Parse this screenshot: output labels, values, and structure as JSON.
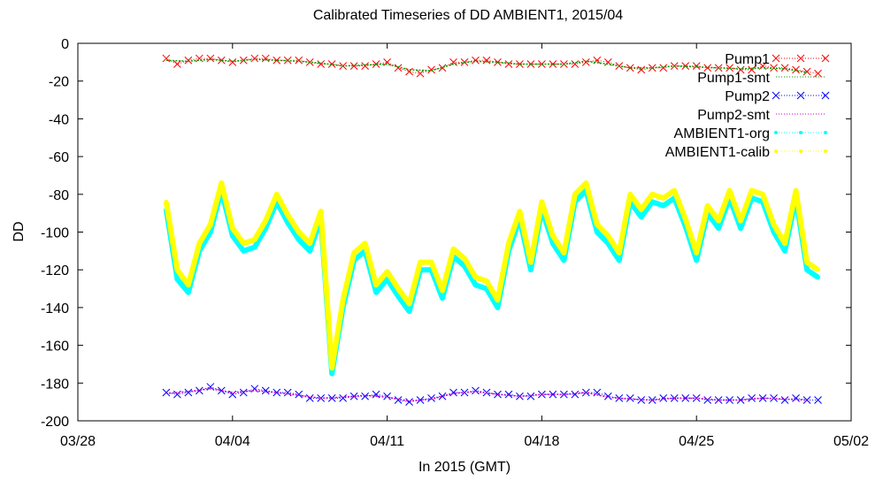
{
  "chart_data": {
    "type": "line",
    "title": "Calibrated Timeseries of DD AMBIENT1, 2015/04",
    "xlabel": "In 2015 (GMT)",
    "ylabel": "DD",
    "xlim": [
      "2015-03-28",
      "2015-05-02"
    ],
    "ylim": [
      -200,
      0
    ],
    "x_ticks": [
      "03/28",
      "04/04",
      "04/11",
      "04/18",
      "04/25",
      "05/02"
    ],
    "y_ticks": [
      "0",
      "-20",
      "-40",
      "-60",
      "-80",
      "-100",
      "-120",
      "-140",
      "-160",
      "-180",
      "-200"
    ],
    "legend_position": "top-right",
    "series": [
      {
        "name": "Pump1",
        "color": "#ff0000",
        "style": "points-x",
        "x": [
          "2015-04-01",
          "2015-04-01.5",
          "2015-04-02",
          "2015-04-02.5",
          "2015-04-03",
          "2015-04-03.5",
          "2015-04-04",
          "2015-04-04.5",
          "2015-04-05",
          "2015-04-05.5",
          "2015-04-06",
          "2015-04-06.5",
          "2015-04-07",
          "2015-04-07.5",
          "2015-04-08",
          "2015-04-08.5",
          "2015-04-09",
          "2015-04-09.5",
          "2015-04-10",
          "2015-04-10.5",
          "2015-04-11",
          "2015-04-11.5",
          "2015-04-12",
          "2015-04-12.5",
          "2015-04-13",
          "2015-04-13.5",
          "2015-04-14",
          "2015-04-14.5",
          "2015-04-15",
          "2015-04-15.5",
          "2015-04-16",
          "2015-04-16.5",
          "2015-04-17",
          "2015-04-17.5",
          "2015-04-18",
          "2015-04-18.5",
          "2015-04-19",
          "2015-04-19.5",
          "2015-04-20",
          "2015-04-20.5",
          "2015-04-21",
          "2015-04-21.5",
          "2015-04-22",
          "2015-04-22.5",
          "2015-04-23",
          "2015-04-23.5",
          "2015-04-24",
          "2015-04-24.5",
          "2015-04-25",
          "2015-04-25.5",
          "2015-04-26",
          "2015-04-26.5",
          "2015-04-27",
          "2015-04-27.5",
          "2015-04-28",
          "2015-04-28.5",
          "2015-04-29",
          "2015-04-29.5",
          "2015-04-30",
          "2015-04-30.5"
        ],
        "y": [
          -8,
          -11,
          -9,
          -8,
          -8,
          -9,
          -10,
          -9,
          -8,
          -8,
          -9,
          -9,
          -9,
          -10,
          -11,
          -11,
          -12,
          -12,
          -12,
          -11,
          -10,
          -13,
          -15,
          -16,
          -14,
          -13,
          -10,
          -10,
          -9,
          -9,
          -10,
          -11,
          -11,
          -11,
          -11,
          -11,
          -11,
          -11,
          -10,
          -9,
          -10,
          -12,
          -13,
          -14,
          -13,
          -13,
          -12,
          -12,
          -12,
          -13,
          -13,
          -13,
          -14,
          -14,
          -12,
          -13,
          -13,
          -14,
          -15,
          -16
        ]
      },
      {
        "name": "Pump1-smt",
        "color": "#00a000",
        "style": "dotted-line",
        "x": [
          "2015-04-01",
          "2015-04-02",
          "2015-04-03",
          "2015-04-04",
          "2015-04-05",
          "2015-04-06",
          "2015-04-07",
          "2015-04-08",
          "2015-04-09",
          "2015-04-10",
          "2015-04-11",
          "2015-04-12",
          "2015-04-13",
          "2015-04-14",
          "2015-04-15",
          "2015-04-16",
          "2015-04-17",
          "2015-04-18",
          "2015-04-19",
          "2015-04-20",
          "2015-04-21",
          "2015-04-22",
          "2015-04-23",
          "2015-04-24",
          "2015-04-25",
          "2015-04-26",
          "2015-04-27",
          "2015-04-28",
          "2015-04-29",
          "2015-04-30"
        ],
        "y": [
          -9,
          -9.5,
          -8.5,
          -9.5,
          -8.5,
          -9,
          -9.5,
          -10.5,
          -12,
          -11.5,
          -11,
          -14,
          -14.5,
          -11,
          -9.5,
          -10,
          -11,
          -11,
          -11,
          -9.5,
          -11,
          -13,
          -13,
          -12,
          -12.5,
          -13,
          -13.5,
          -13,
          -13.5,
          -15.5
        ]
      },
      {
        "name": "Pump2",
        "color": "#0000ff",
        "style": "points-x",
        "x": [
          "2015-04-01",
          "2015-04-01.5",
          "2015-04-02",
          "2015-04-02.5",
          "2015-04-03",
          "2015-04-03.5",
          "2015-04-04",
          "2015-04-04.5",
          "2015-04-05",
          "2015-04-05.5",
          "2015-04-06",
          "2015-04-06.5",
          "2015-04-07",
          "2015-04-07.5",
          "2015-04-08",
          "2015-04-08.5",
          "2015-04-09",
          "2015-04-09.5",
          "2015-04-10",
          "2015-04-10.5",
          "2015-04-11",
          "2015-04-11.5",
          "2015-04-12",
          "2015-04-12.5",
          "2015-04-13",
          "2015-04-13.5",
          "2015-04-14",
          "2015-04-14.5",
          "2015-04-15",
          "2015-04-15.5",
          "2015-04-16",
          "2015-04-16.5",
          "2015-04-17",
          "2015-04-17.5",
          "2015-04-18",
          "2015-04-18.5",
          "2015-04-19",
          "2015-04-19.5",
          "2015-04-20",
          "2015-04-20.5",
          "2015-04-21",
          "2015-04-21.5",
          "2015-04-22",
          "2015-04-22.5",
          "2015-04-23",
          "2015-04-23.5",
          "2015-04-24",
          "2015-04-24.5",
          "2015-04-25",
          "2015-04-25.5",
          "2015-04-26",
          "2015-04-26.5",
          "2015-04-27",
          "2015-04-27.5",
          "2015-04-28",
          "2015-04-28.5",
          "2015-04-29",
          "2015-04-29.5",
          "2015-04-30",
          "2015-04-30.5"
        ],
        "y": [
          -185,
          -186,
          -185,
          -184,
          -182,
          -184,
          -186,
          -185,
          -183,
          -184,
          -185,
          -185,
          -186,
          -188,
          -188,
          -188,
          -188,
          -187,
          -187,
          -186,
          -187,
          -189,
          -190,
          -189,
          -188,
          -187,
          -185,
          -185,
          -184,
          -185,
          -186,
          -186,
          -187,
          -187,
          -186,
          -186,
          -186,
          -186,
          -185,
          -185,
          -187,
          -188,
          -188,
          -189,
          -189,
          -188,
          -188,
          -188,
          -188,
          -189,
          -189,
          -189,
          -189,
          -188,
          -188,
          -188,
          -189,
          -188,
          -189,
          -189
        ]
      },
      {
        "name": "Pump2-smt",
        "color": "#cc00cc",
        "style": "dotted-line",
        "x": [
          "2015-04-01",
          "2015-04-02",
          "2015-04-03",
          "2015-04-04",
          "2015-04-05",
          "2015-04-06",
          "2015-04-07",
          "2015-04-08",
          "2015-04-09",
          "2015-04-10",
          "2015-04-11",
          "2015-04-12",
          "2015-04-13",
          "2015-04-14",
          "2015-04-15",
          "2015-04-16",
          "2015-04-17",
          "2015-04-18",
          "2015-04-19",
          "2015-04-20",
          "2015-04-21",
          "2015-04-22",
          "2015-04-23",
          "2015-04-24",
          "2015-04-25",
          "2015-04-26",
          "2015-04-27",
          "2015-04-28",
          "2015-04-29",
          "2015-04-30"
        ],
        "y": [
          -185.5,
          -184.5,
          -183,
          -185,
          -184,
          -185,
          -186.5,
          -188,
          -187.5,
          -186.5,
          -187.5,
          -189.5,
          -188.5,
          -185.5,
          -184.5,
          -186,
          -187,
          -186,
          -186,
          -185,
          -187.5,
          -188.5,
          -189,
          -188,
          -188,
          -189,
          -189,
          -188,
          -188.5,
          -189
        ]
      },
      {
        "name": "AMBIENT1-org",
        "color": "#00ffff",
        "style": "points-dense",
        "x": [
          "2015-04-01",
          "2015-04-01.5",
          "2015-04-02",
          "2015-04-02.5",
          "2015-04-03",
          "2015-04-03.5",
          "2015-04-04",
          "2015-04-04.5",
          "2015-04-05",
          "2015-04-05.5",
          "2015-04-06",
          "2015-04-06.5",
          "2015-04-07",
          "2015-04-07.5",
          "2015-04-08",
          "2015-04-08.5",
          "2015-04-09",
          "2015-04-09.5",
          "2015-04-10",
          "2015-04-10.5",
          "2015-04-11",
          "2015-04-11.5",
          "2015-04-12",
          "2015-04-12.5",
          "2015-04-13",
          "2015-04-13.5",
          "2015-04-14",
          "2015-04-14.5",
          "2015-04-15",
          "2015-04-15.5",
          "2015-04-16",
          "2015-04-16.5",
          "2015-04-17",
          "2015-04-17.5",
          "2015-04-18",
          "2015-04-18.5",
          "2015-04-19",
          "2015-04-19.5",
          "2015-04-20",
          "2015-04-20.5",
          "2015-04-21",
          "2015-04-21.5",
          "2015-04-22",
          "2015-04-22.5",
          "2015-04-23",
          "2015-04-23.5",
          "2015-04-24",
          "2015-04-24.5",
          "2015-04-25",
          "2015-04-25.5",
          "2015-04-26",
          "2015-04-26.5",
          "2015-04-27",
          "2015-04-27.5",
          "2015-04-28",
          "2015-04-28.5",
          "2015-04-29",
          "2015-04-29.5",
          "2015-04-30",
          "2015-04-30.5"
        ],
        "y": [
          -88,
          -125,
          -132,
          -110,
          -100,
          -78,
          -102,
          -110,
          -108,
          -98,
          -84,
          -95,
          -104,
          -110,
          -93,
          -175,
          -140,
          -115,
          -110,
          -132,
          -125,
          -134,
          -142,
          -120,
          -120,
          -135,
          -113,
          -118,
          -128,
          -130,
          -140,
          -110,
          -93,
          -120,
          -88,
          -106,
          -115,
          -84,
          -78,
          -100,
          -106,
          -115,
          -84,
          -92,
          -84,
          -86,
          -82,
          -97,
          -115,
          -90,
          -98,
          -82,
          -98,
          -82,
          -84,
          -100,
          -110,
          -82,
          -120,
          -124
        ]
      },
      {
        "name": "AMBIENT1-calib",
        "color": "#ffff00",
        "style": "points-dense",
        "x": [
          "2015-04-01",
          "2015-04-01.5",
          "2015-04-02",
          "2015-04-02.5",
          "2015-04-03",
          "2015-04-03.5",
          "2015-04-04",
          "2015-04-04.5",
          "2015-04-05",
          "2015-04-05.5",
          "2015-04-06",
          "2015-04-06.5",
          "2015-04-07",
          "2015-04-07.5",
          "2015-04-08",
          "2015-04-08.5",
          "2015-04-09",
          "2015-04-09.5",
          "2015-04-10",
          "2015-04-10.5",
          "2015-04-11",
          "2015-04-11.5",
          "2015-04-12",
          "2015-04-12.5",
          "2015-04-13",
          "2015-04-13.5",
          "2015-04-14",
          "2015-04-14.5",
          "2015-04-15",
          "2015-04-15.5",
          "2015-04-16",
          "2015-04-16.5",
          "2015-04-17",
          "2015-04-17.5",
          "2015-04-18",
          "2015-04-18.5",
          "2015-04-19",
          "2015-04-19.5",
          "2015-04-20",
          "2015-04-20.5",
          "2015-04-21",
          "2015-04-21.5",
          "2015-04-22",
          "2015-04-22.5",
          "2015-04-23",
          "2015-04-23.5",
          "2015-04-24",
          "2015-04-24.5",
          "2015-04-25",
          "2015-04-25.5",
          "2015-04-26",
          "2015-04-26.5",
          "2015-04-27",
          "2015-04-27.5",
          "2015-04-28",
          "2015-04-28.5",
          "2015-04-29",
          "2015-04-29.5",
          "2015-04-30",
          "2015-04-30.5"
        ],
        "y": [
          -84,
          -120,
          -128,
          -106,
          -96,
          -74,
          -98,
          -106,
          -104,
          -94,
          -80,
          -91,
          -100,
          -106,
          -89,
          -172,
          -136,
          -111,
          -106,
          -128,
          -121,
          -130,
          -138,
          -116,
          -116,
          -131,
          -109,
          -114,
          -124,
          -126,
          -136,
          -106,
          -89,
          -116,
          -84,
          -102,
          -111,
          -80,
          -74,
          -96,
          -102,
          -111,
          -80,
          -88,
          -80,
          -82,
          -78,
          -93,
          -111,
          -86,
          -94,
          -78,
          -94,
          -78,
          -80,
          -96,
          -106,
          -78,
          -116,
          -120
        ]
      }
    ]
  }
}
